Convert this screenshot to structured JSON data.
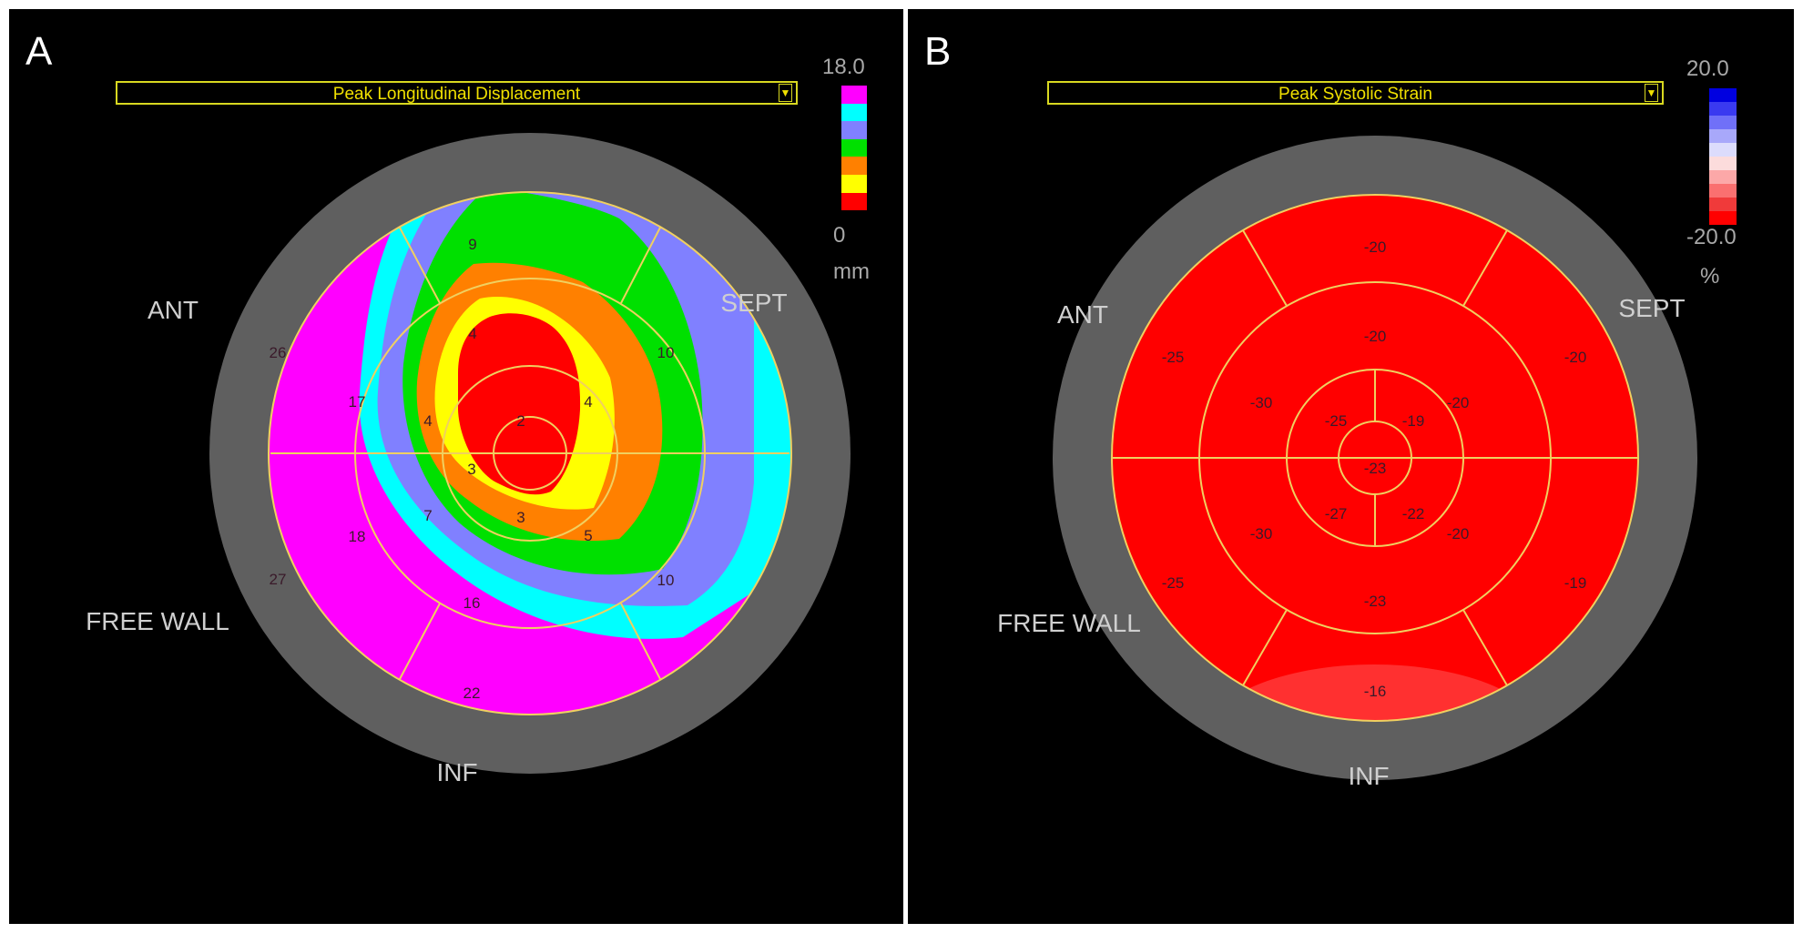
{
  "panel_a": {
    "label": "A",
    "dropdown": "Peak Longitudinal Displacement",
    "dropdown_arrow": "▼",
    "scale": {
      "max": "18.0",
      "min": "0",
      "unit": "mm",
      "colors": [
        "#ff00ff",
        "#00ffff",
        "#8080ff",
        "#00e000",
        "#ff8000",
        "#ffff00",
        "#ff0000"
      ]
    },
    "walls": {
      "ant": "ANT",
      "sept": "SEPT",
      "inf": "INF",
      "free_wall": "FREE WALL"
    },
    "segments": [
      {
        "name": "basal-ant",
        "value": "26"
      },
      {
        "name": "basal-anterosept",
        "value": "9"
      },
      {
        "name": "basal-sept",
        "value": "10"
      },
      {
        "name": "basal-infsept",
        "value": "10"
      },
      {
        "name": "basal-inf",
        "value": "22"
      },
      {
        "name": "basal-free",
        "value": "27"
      },
      {
        "name": "mid-ant",
        "value": "17"
      },
      {
        "name": "mid-anterosept",
        "value": "4"
      },
      {
        "name": "mid-sept",
        "value": "4"
      },
      {
        "name": "mid-infsept",
        "value": "5"
      },
      {
        "name": "mid-inf",
        "value": "16"
      },
      {
        "name": "mid-free",
        "value": "18"
      },
      {
        "name": "apical-ant",
        "value": "4"
      },
      {
        "name": "apical-sept",
        "value": "2"
      },
      {
        "name": "apical-inf",
        "value": "3"
      },
      {
        "name": "apical-free",
        "value": "7"
      },
      {
        "name": "apex",
        "value": "3"
      }
    ],
    "colors": {
      "magenta": "#ff00ff",
      "cyan": "#00ffff",
      "lavender": "#8080ff",
      "green": "#00e000",
      "orange": "#ff8000",
      "yellow": "#ffff00",
      "red": "#ff0000",
      "ring": "#5f5f5f",
      "grid": "#f0d060"
    }
  },
  "panel_b": {
    "label": "B",
    "dropdown": "Peak Systolic Strain",
    "dropdown_arrow": "▼",
    "scale": {
      "max": "20.0",
      "min": "-20.0",
      "unit": "%",
      "colors": [
        "#0000e0",
        "#3a3af0",
        "#7070f8",
        "#a8a8fa",
        "#dcdcfc",
        "#fcdcdc",
        "#fca8a8",
        "#fa7070",
        "#f03a3a",
        "#ff0000"
      ]
    },
    "walls": {
      "ant": "ANT",
      "sept": "SEPT",
      "inf": "INF",
      "free_wall": "FREE WALL"
    },
    "segments": [
      {
        "name": "basal-ant",
        "value": "-20"
      },
      {
        "name": "basal-sept",
        "value": "-20"
      },
      {
        "name": "basal-infsept",
        "value": "-19"
      },
      {
        "name": "basal-inf",
        "value": "-16"
      },
      {
        "name": "basal-free",
        "value": "-25"
      },
      {
        "name": "basal-antfree",
        "value": "-25"
      },
      {
        "name": "mid-ant",
        "value": "-20"
      },
      {
        "name": "mid-sept",
        "value": "-20"
      },
      {
        "name": "mid-infsept",
        "value": "-20"
      },
      {
        "name": "mid-inf",
        "value": "-23"
      },
      {
        "name": "mid-free",
        "value": "-30"
      },
      {
        "name": "mid-antfree",
        "value": "-30"
      },
      {
        "name": "apical-ant",
        "value": "-25"
      },
      {
        "name": "apical-sept",
        "value": "-19"
      },
      {
        "name": "apical-inf",
        "value": "-22"
      },
      {
        "name": "apical-free",
        "value": "-27"
      },
      {
        "name": "apex",
        "value": "-23"
      }
    ],
    "colors": {
      "red": "#ff0000",
      "ring": "#5f5f5f",
      "grid": "#f0d060"
    }
  }
}
